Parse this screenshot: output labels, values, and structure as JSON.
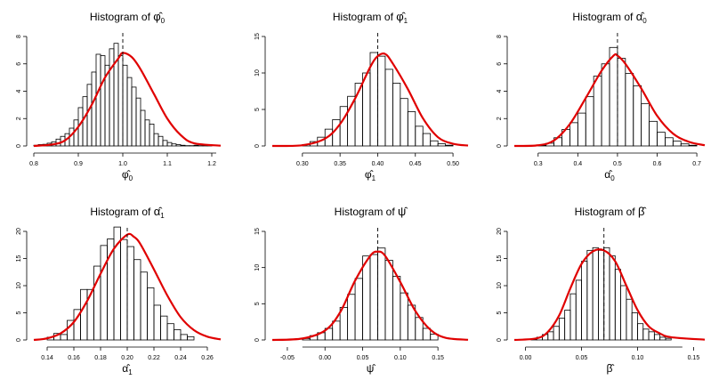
{
  "colors": {
    "density_curve": "#e00000",
    "bars_stroke": "#000000",
    "true_value_line": "#000000"
  },
  "chart_data": [
    {
      "type": "bar",
      "title": "Histogram of",
      "title_symbol": "φ̂",
      "title_sub": "0",
      "xlabel_symbol": "φ̂",
      "xlabel_sub": "0",
      "xlim": [
        0.8,
        1.22
      ],
      "ylim": [
        0,
        8
      ],
      "x_ticks": [
        "0.8",
        "0.9",
        "1.0",
        "1.1",
        "1.2"
      ],
      "y_ticks": [
        "0",
        "2",
        "4",
        "6",
        "8"
      ],
      "bin_start": 0.8,
      "bin_width": 0.01,
      "values": [
        0.05,
        0.1,
        0.12,
        0.2,
        0.3,
        0.5,
        0.7,
        0.9,
        1.3,
        1.9,
        2.8,
        3.6,
        4.5,
        5.4,
        6.7,
        6.6,
        5.9,
        7.1,
        7.5,
        6.6,
        5.9,
        5.0,
        4.3,
        3.5,
        2.6,
        1.9,
        1.6,
        0.9,
        0.7,
        0.4,
        0.25,
        0.15,
        0.1,
        0.05,
        0.02,
        0.02,
        0.05,
        0.02,
        0.02,
        0.1
      ],
      "density": [
        [
          0.8,
          0.0
        ],
        [
          0.84,
          0.1
        ],
        [
          0.87,
          0.4
        ],
        [
          0.9,
          1.4
        ],
        [
          0.93,
          3.0
        ],
        [
          0.96,
          5.0
        ],
        [
          0.99,
          6.4
        ],
        [
          1.0,
          6.8
        ],
        [
          1.02,
          6.5
        ],
        [
          1.04,
          5.6
        ],
        [
          1.07,
          3.8
        ],
        [
          1.1,
          2.0
        ],
        [
          1.13,
          0.8
        ],
        [
          1.16,
          0.2
        ],
        [
          1.22,
          0.02
        ]
      ],
      "true_value": 1.0,
      "axis_span": [
        0.8,
        1.21
      ]
    },
    {
      "type": "bar",
      "title": "Histogram of",
      "title_symbol": "φ̂",
      "title_sub": "1",
      "xlabel_symbol": "φ̂",
      "xlabel_sub": "1",
      "xlim": [
        0.26,
        0.52
      ],
      "ylim": [
        0,
        15
      ],
      "x_ticks": [
        "0.30",
        "0.35",
        "0.40",
        "0.45",
        "0.50"
      ],
      "y_ticks": [
        "0",
        "5",
        "10",
        "15"
      ],
      "bin_start": 0.3,
      "bin_width": 0.01,
      "values": [
        0.2,
        0.6,
        1.2,
        2.3,
        3.6,
        5.4,
        6.8,
        8.6,
        10.0,
        12.8,
        12.3,
        10.5,
        8.6,
        6.5,
        4.7,
        2.7,
        1.7,
        0.7,
        0.3,
        0.1
      ],
      "density": [
        [
          0.26,
          0.0
        ],
        [
          0.3,
          0.1
        ],
        [
          0.33,
          1.0
        ],
        [
          0.35,
          3.0
        ],
        [
          0.37,
          6.5
        ],
        [
          0.39,
          10.8
        ],
        [
          0.4,
          12.3
        ],
        [
          0.41,
          12.6
        ],
        [
          0.42,
          11.3
        ],
        [
          0.44,
          7.8
        ],
        [
          0.46,
          3.8
        ],
        [
          0.48,
          1.2
        ],
        [
          0.5,
          0.3
        ],
        [
          0.52,
          0.05
        ]
      ],
      "true_value": 0.4,
      "axis_span": [
        0.3,
        0.5
      ]
    },
    {
      "type": "bar",
      "title": "Histogram of",
      "title_symbol": "α̂",
      "title_sub": "0",
      "xlabel_symbol": "α̂",
      "xlabel_sub": "0",
      "xlim": [
        0.24,
        0.72
      ],
      "ylim": [
        0,
        8
      ],
      "x_ticks": [
        "0.3",
        "0.4",
        "0.5",
        "0.6",
        "0.7"
      ],
      "y_ticks": [
        "0",
        "2",
        "4",
        "6",
        "8"
      ],
      "bin_start": 0.3,
      "bin_width": 0.02,
      "values": [
        0.05,
        0.2,
        0.6,
        1.2,
        1.7,
        2.4,
        3.6,
        5.1,
        6.0,
        7.2,
        6.4,
        5.3,
        4.4,
        3.1,
        1.8,
        1.0,
        0.6,
        0.35,
        0.15,
        0.05
      ],
      "density": [
        [
          0.24,
          0.0
        ],
        [
          0.3,
          0.05
        ],
        [
          0.34,
          0.4
        ],
        [
          0.38,
          1.6
        ],
        [
          0.42,
          3.5
        ],
        [
          0.46,
          5.5
        ],
        [
          0.49,
          6.6
        ],
        [
          0.5,
          6.6
        ],
        [
          0.52,
          6.0
        ],
        [
          0.56,
          4.2
        ],
        [
          0.6,
          2.2
        ],
        [
          0.64,
          0.9
        ],
        [
          0.68,
          0.3
        ],
        [
          0.72,
          0.05
        ]
      ],
      "true_value": 0.5,
      "axis_span": [
        0.3,
        0.7
      ]
    },
    {
      "type": "bar",
      "title": "Histogram of",
      "title_symbol": "α̂",
      "title_sub": "1",
      "xlabel_symbol": "α̂",
      "xlabel_sub": "1",
      "xlim": [
        0.13,
        0.27
      ],
      "ylim": [
        0,
        20
      ],
      "x_ticks": [
        "0.14",
        "0.16",
        "0.18",
        "0.20",
        "0.22",
        "0.24",
        "0.26"
      ],
      "y_ticks": [
        "0",
        "5",
        "10",
        "15",
        "20"
      ],
      "bin_start": 0.14,
      "bin_width": 0.005,
      "values": [
        0.5,
        1.2,
        1.0,
        3.6,
        5.6,
        9.3,
        9.3,
        13.6,
        17.4,
        18.6,
        20.8,
        18.5,
        17.2,
        14.8,
        12.5,
        9.6,
        6.4,
        4.4,
        3.0,
        1.9,
        1.0,
        0.6
      ],
      "density": [
        [
          0.13,
          0.0
        ],
        [
          0.14,
          0.3
        ],
        [
          0.15,
          1.2
        ],
        [
          0.16,
          3.3
        ],
        [
          0.17,
          7.2
        ],
        [
          0.18,
          12.2
        ],
        [
          0.19,
          16.8
        ],
        [
          0.2,
          19.4
        ],
        [
          0.205,
          19.0
        ],
        [
          0.21,
          17.6
        ],
        [
          0.22,
          13.0
        ],
        [
          0.23,
          8.2
        ],
        [
          0.24,
          4.2
        ],
        [
          0.25,
          1.8
        ],
        [
          0.26,
          0.6
        ],
        [
          0.27,
          0.1
        ]
      ],
      "true_value": 0.2,
      "axis_span": [
        0.14,
        0.26
      ]
    },
    {
      "type": "bar",
      "title": "Histogram of",
      "title_symbol": "ψ̂",
      "title_sub": "",
      "xlabel_symbol": "ψ̂",
      "xlabel_sub": "",
      "xlim": [
        -0.07,
        0.19
      ],
      "ylim": [
        0,
        15
      ],
      "x_ticks": [
        "-0.05",
        "0.00",
        "0.05",
        "0.10",
        "0.15"
      ],
      "y_ticks": [
        "0",
        "5",
        "10",
        "15"
      ],
      "bin_start": -0.03,
      "bin_width": 0.01,
      "values": [
        0.2,
        0.6,
        1.0,
        1.6,
        2.6,
        4.5,
        6.3,
        8.5,
        11.6,
        11.8,
        12.7,
        11.0,
        8.8,
        6.5,
        4.8,
        3.1,
        1.6,
        0.8
      ],
      "density": [
        [
          -0.07,
          0.0
        ],
        [
          -0.03,
          0.2
        ],
        [
          0.0,
          1.3
        ],
        [
          0.02,
          3.8
        ],
        [
          0.04,
          8.2
        ],
        [
          0.06,
          11.6
        ],
        [
          0.07,
          12.2
        ],
        [
          0.08,
          11.6
        ],
        [
          0.1,
          8.0
        ],
        [
          0.12,
          4.0
        ],
        [
          0.14,
          1.4
        ],
        [
          0.16,
          0.3
        ],
        [
          0.19,
          0.02
        ]
      ],
      "true_value": 0.07,
      "axis_span": [
        -0.03,
        0.15
      ]
    },
    {
      "type": "bar",
      "title": "Histogram of",
      "title_symbol": "β̂",
      "title_sub": "",
      "xlabel_symbol": "β̂",
      "xlabel_sub": "",
      "xlim": [
        -0.01,
        0.16
      ],
      "ylim": [
        0,
        20
      ],
      "x_ticks": [
        "0.00",
        "0.05",
        "0.10",
        "0.15"
      ],
      "y_ticks": [
        "0",
        "5",
        "10",
        "15",
        "20"
      ],
      "bin_start": 0.005,
      "bin_width": 0.005,
      "values": [
        0.1,
        0.5,
        1.0,
        1.5,
        2.5,
        4.0,
        5.5,
        8.5,
        11.0,
        14.5,
        16.5,
        17.0,
        16.5,
        17.0,
        15.5,
        13.0,
        10.0,
        7.5,
        5.0,
        3.0,
        2.0,
        1.5,
        1.0,
        0.5,
        0.3
      ],
      "density": [
        [
          -0.01,
          0.0
        ],
        [
          0.01,
          0.3
        ],
        [
          0.02,
          1.5
        ],
        [
          0.03,
          4.5
        ],
        [
          0.04,
          9.5
        ],
        [
          0.05,
          14.0
        ],
        [
          0.06,
          16.3
        ],
        [
          0.07,
          16.5
        ],
        [
          0.08,
          14.5
        ],
        [
          0.09,
          10.0
        ],
        [
          0.1,
          5.5
        ],
        [
          0.11,
          2.5
        ],
        [
          0.12,
          1.2
        ],
        [
          0.13,
          0.5
        ],
        [
          0.16,
          0.05
        ]
      ],
      "true_value": 0.07,
      "axis_span": [
        0.0,
        0.14
      ]
    }
  ]
}
